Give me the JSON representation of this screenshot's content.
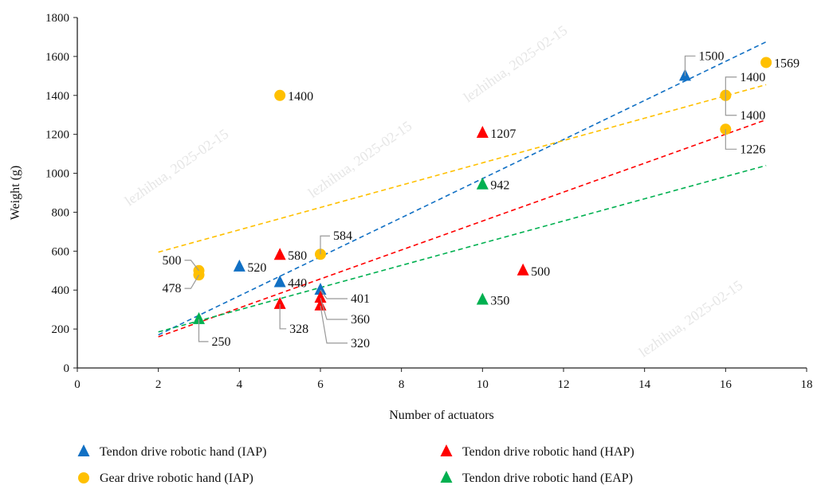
{
  "chart_data": {
    "type": "scatter",
    "title": "",
    "xlabel": "Number of actuators",
    "ylabel": "Weight (g)",
    "xlim": [
      0,
      18
    ],
    "ylim": [
      0,
      1800
    ],
    "xticks": [
      0,
      2,
      4,
      6,
      8,
      10,
      12,
      14,
      16,
      18
    ],
    "yticks": [
      0,
      200,
      400,
      600,
      800,
      1000,
      1200,
      1400,
      1600,
      1800
    ],
    "grid": false,
    "legend_placement": "bottom",
    "watermark": "lezhihua, 2025-02-15",
    "series": [
      {
        "name": "Tendon drive robotic hand (IAP)",
        "marker": "triangle",
        "color": "#1170C4",
        "points": [
          {
            "x": 4,
            "y": 520,
            "label": "520"
          },
          {
            "x": 5,
            "y": 440,
            "label": "440"
          },
          {
            "x": 6,
            "y": 401,
            "label": "401"
          },
          {
            "x": 15,
            "y": 1500,
            "label": "1500"
          }
        ],
        "trend": {
          "x": [
            2,
            17
          ],
          "y": [
            170,
            1675
          ]
        }
      },
      {
        "name": "Gear drive robotic hand (IAP)",
        "marker": "circle",
        "color": "#FFC000",
        "points": [
          {
            "x": 3,
            "y": 500,
            "label": "500"
          },
          {
            "x": 3,
            "y": 478,
            "label": "478"
          },
          {
            "x": 5,
            "y": 1400,
            "label": "1400"
          },
          {
            "x": 6,
            "y": 584,
            "label": "584"
          },
          {
            "x": 16,
            "y": 1400,
            "label": "1400"
          },
          {
            "x": 16,
            "y": 1400,
            "label": "1400"
          },
          {
            "x": 16,
            "y": 1226,
            "label": "1226"
          },
          {
            "x": 17,
            "y": 1569,
            "label": "1569"
          }
        ],
        "trend": {
          "x": [
            2,
            17
          ],
          "y": [
            595,
            1455
          ]
        }
      },
      {
        "name": "Tendon drive robotic hand (HAP)",
        "marker": "triangle",
        "color": "#FF0000",
        "points": [
          {
            "x": 5,
            "y": 580,
            "label": "580"
          },
          {
            "x": 5,
            "y": 328,
            "label": "328"
          },
          {
            "x": 6,
            "y": 360,
            "label": "360"
          },
          {
            "x": 6,
            "y": 320,
            "label": "320"
          },
          {
            "x": 10,
            "y": 1207,
            "label": "1207"
          },
          {
            "x": 11,
            "y": 500,
            "label": "500"
          }
        ],
        "trend": {
          "x": [
            2,
            17
          ],
          "y": [
            160,
            1275
          ]
        }
      },
      {
        "name": "Tendon drive robotic hand (EAP)",
        "marker": "triangle",
        "color": "#00B050",
        "points": [
          {
            "x": 3,
            "y": 250,
            "label": "250"
          },
          {
            "x": 10,
            "y": 942,
            "label": "942"
          },
          {
            "x": 10,
            "y": 350,
            "label": "350"
          }
        ],
        "trend": {
          "x": [
            2,
            17
          ],
          "y": [
            185,
            1040
          ]
        }
      }
    ]
  }
}
